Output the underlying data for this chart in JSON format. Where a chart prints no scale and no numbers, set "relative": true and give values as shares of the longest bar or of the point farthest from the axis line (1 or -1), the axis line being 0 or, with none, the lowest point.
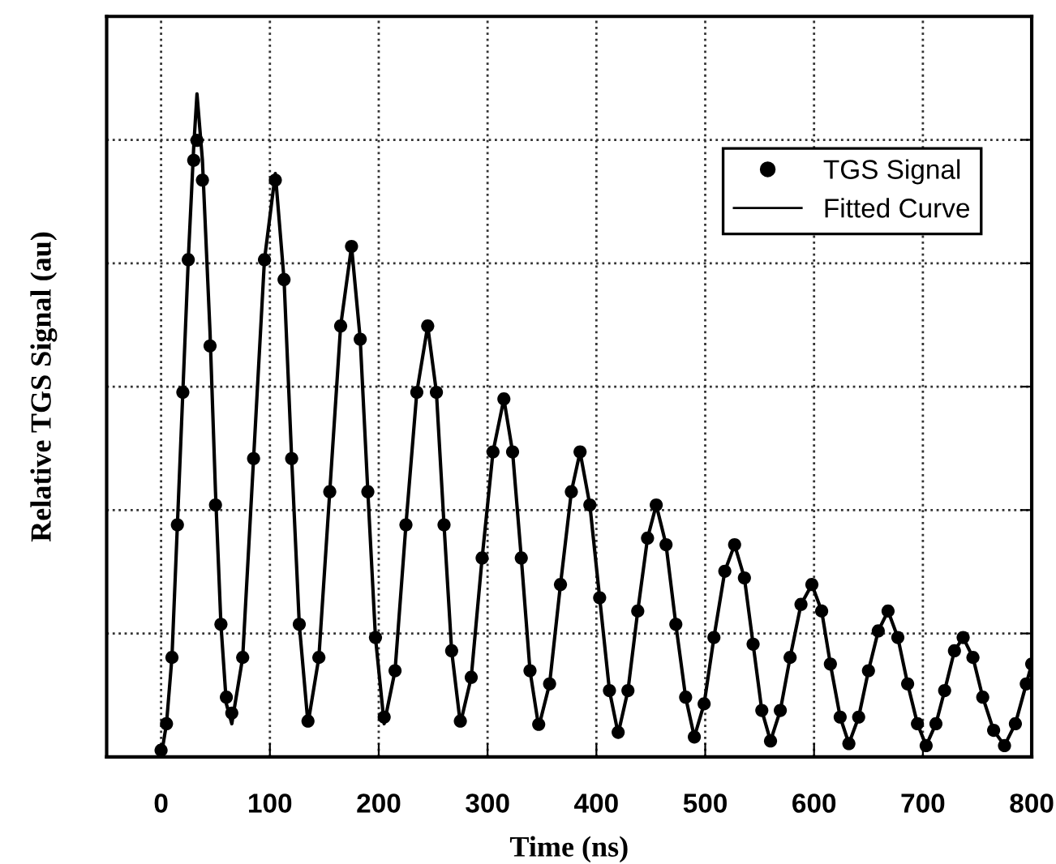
{
  "chart_data": {
    "type": "line",
    "xlabel": "Time (ns)",
    "ylabel": "Relative TGS Signal (au)",
    "relative": true,
    "xlim": [
      -50,
      800
    ],
    "xticks": [
      0,
      100,
      200,
      300,
      400,
      500,
      600,
      700,
      800
    ],
    "tick_labels": "x",
    "grid": true,
    "legend": "top right",
    "series": [
      {
        "name": "TGS Signal",
        "type": "scatter",
        "marker": "circle",
        "color": "#000000",
        "x": [
          0,
          5,
          10,
          15,
          20,
          25,
          30,
          33,
          38,
          45,
          50,
          55,
          60,
          65,
          75,
          85,
          95,
          105,
          113,
          120,
          127,
          135,
          145,
          155,
          165,
          175,
          183,
          190,
          197,
          205,
          215,
          225,
          235,
          245,
          253,
          260,
          267,
          275,
          285,
          295,
          305,
          315,
          323,
          331,
          339,
          347,
          357,
          367,
          377,
          385,
          394,
          403,
          412,
          420,
          429,
          438,
          447,
          455,
          464,
          473,
          482,
          490,
          499,
          508,
          518,
          527,
          536,
          544,
          552,
          560,
          569,
          578,
          588,
          598,
          607,
          615,
          624,
          632,
          641,
          650,
          659,
          668,
          677,
          686,
          695,
          703,
          712,
          720,
          729,
          737,
          746,
          755,
          765,
          775,
          785,
          795,
          800
        ],
        "values": [
          0.01,
          0.05,
          0.15,
          0.35,
          0.55,
          0.75,
          0.9,
          0.93,
          0.87,
          0.62,
          0.38,
          0.2,
          0.09,
          0.066,
          0.15,
          0.45,
          0.75,
          0.87,
          0.72,
          0.45,
          0.2,
          0.054,
          0.15,
          0.4,
          0.65,
          0.77,
          0.63,
          0.4,
          0.18,
          0.06,
          0.13,
          0.35,
          0.55,
          0.65,
          0.55,
          0.35,
          0.16,
          0.054,
          0.12,
          0.3,
          0.46,
          0.54,
          0.46,
          0.3,
          0.13,
          0.049,
          0.11,
          0.26,
          0.4,
          0.46,
          0.38,
          0.24,
          0.1,
          0.037,
          0.1,
          0.22,
          0.33,
          0.38,
          0.32,
          0.2,
          0.09,
          0.03,
          0.08,
          0.18,
          0.28,
          0.32,
          0.27,
          0.17,
          0.07,
          0.024,
          0.07,
          0.15,
          0.23,
          0.26,
          0.22,
          0.14,
          0.06,
          0.02,
          0.06,
          0.13,
          0.19,
          0.22,
          0.18,
          0.11,
          0.05,
          0.017,
          0.05,
          0.1,
          0.16,
          0.18,
          0.15,
          0.09,
          0.04,
          0.017,
          0.05,
          0.11,
          0.14
        ]
      },
      {
        "name": "Fitted Curve",
        "line_style": "solid",
        "color": "#000000",
        "x": [
          0,
          5,
          10,
          15,
          20,
          25,
          30,
          33,
          38,
          45,
          50,
          55,
          60,
          65,
          75,
          85,
          95,
          105,
          113,
          120,
          127,
          135,
          145,
          155,
          165,
          175,
          183,
          190,
          197,
          205,
          215,
          225,
          235,
          245,
          253,
          260,
          267,
          275,
          285,
          295,
          305,
          315,
          323,
          331,
          339,
          347,
          357,
          367,
          377,
          385,
          394,
          403,
          412,
          420,
          429,
          438,
          447,
          455,
          464,
          473,
          482,
          490,
          499,
          508,
          518,
          527,
          536,
          544,
          552,
          560,
          569,
          578,
          588,
          598,
          607,
          615,
          624,
          632,
          641,
          650,
          659,
          668,
          677,
          686,
          695,
          703,
          712,
          720,
          729,
          737,
          746,
          755,
          765,
          775,
          785,
          795,
          800
        ],
        "values": [
          0.0,
          0.05,
          0.15,
          0.35,
          0.55,
          0.75,
          0.92,
          1.0,
          0.9,
          0.64,
          0.4,
          0.2,
          0.08,
          0.05,
          0.15,
          0.45,
          0.75,
          0.88,
          0.72,
          0.45,
          0.2,
          0.05,
          0.15,
          0.4,
          0.65,
          0.77,
          0.63,
          0.4,
          0.18,
          0.05,
          0.13,
          0.35,
          0.55,
          0.65,
          0.55,
          0.35,
          0.16,
          0.05,
          0.12,
          0.3,
          0.46,
          0.54,
          0.46,
          0.3,
          0.13,
          0.045,
          0.11,
          0.26,
          0.4,
          0.46,
          0.38,
          0.24,
          0.1,
          0.035,
          0.1,
          0.22,
          0.33,
          0.38,
          0.32,
          0.2,
          0.09,
          0.03,
          0.08,
          0.18,
          0.28,
          0.32,
          0.27,
          0.17,
          0.07,
          0.024,
          0.07,
          0.15,
          0.23,
          0.26,
          0.22,
          0.14,
          0.06,
          0.02,
          0.06,
          0.13,
          0.19,
          0.22,
          0.18,
          0.11,
          0.05,
          0.017,
          0.05,
          0.1,
          0.16,
          0.18,
          0.15,
          0.09,
          0.04,
          0.017,
          0.05,
          0.11,
          0.14
        ]
      }
    ]
  }
}
